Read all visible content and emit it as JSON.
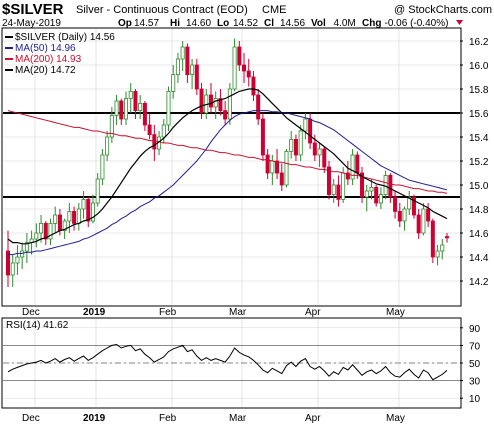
{
  "header": {
    "symbol": "$SILVER",
    "description": "Silver - Continuous Contract (EOD)",
    "exchange": "CME",
    "brand": "@ StockCharts.com",
    "date": "24-May-2019",
    "quote": [
      {
        "label": "Op",
        "value": "14.57"
      },
      {
        "label": "Hi",
        "value": "14.60"
      },
      {
        "label": "Lo",
        "value": "14.52"
      },
      {
        "label": "Cl",
        "value": "14.56"
      },
      {
        "label": "Vol",
        "value": "4.0M"
      },
      {
        "label": "Chg",
        "value": "-0.06 (-0.40%)"
      }
    ],
    "chg_icon": "down-triangle-icon"
  },
  "legend": [
    {
      "text": "$SILVER (Daily) 14.56",
      "color": "#000000"
    },
    {
      "text": "MA(50) 14.96",
      "color": "#1f1f8f"
    },
    {
      "text": "MA(200) 14.93",
      "color": "#c8102e"
    },
    {
      "text": "MA(20) 14.72",
      "color": "#000000"
    }
  ],
  "colors": {
    "up": "#2e8b2e",
    "down": "#cc0033",
    "ma50": "#1f1f8f",
    "ma200": "#c8102e",
    "ma20": "#000000",
    "grid": "#d6d6d6",
    "rsi": "#000000",
    "rsi_fill": "#e3c2e3"
  },
  "chart_data": [
    {
      "type": "candlestick",
      "series_name": "$SILVER (Daily)",
      "ylim": [
        14.0,
        16.3
      ],
      "y_ticks": [
        "16.2",
        "16.0",
        "15.8",
        "15.6",
        "15.4",
        "15.2",
        "15.0",
        "14.8",
        "14.6",
        "14.4",
        "14.2"
      ],
      "x_ticks": [
        "Dec",
        "2019",
        "Feb",
        "Mar",
        "Apr",
        "May"
      ],
      "grid": true,
      "horizontal_lines": [
        15.6,
        14.9
      ],
      "candles": [
        [
          14.45,
          14.62,
          14.15,
          14.25
        ],
        [
          14.25,
          14.42,
          14.15,
          14.35
        ],
        [
          14.35,
          14.5,
          14.25,
          14.4
        ],
        [
          14.4,
          14.52,
          14.3,
          14.45
        ],
        [
          14.45,
          14.6,
          14.35,
          14.52
        ],
        [
          14.52,
          14.62,
          14.42,
          14.55
        ],
        [
          14.55,
          14.68,
          14.48,
          14.6
        ],
        [
          14.6,
          14.75,
          14.52,
          14.68
        ],
        [
          14.68,
          14.7,
          14.5,
          14.55
        ],
        [
          14.55,
          14.72,
          14.5,
          14.68
        ],
        [
          14.68,
          14.82,
          14.6,
          14.75
        ],
        [
          14.75,
          14.8,
          14.58,
          14.62
        ],
        [
          14.62,
          14.72,
          14.55,
          14.7
        ],
        [
          14.7,
          14.85,
          14.6,
          14.78
        ],
        [
          14.78,
          14.82,
          14.62,
          14.68
        ],
        [
          14.68,
          14.85,
          14.62,
          14.8
        ],
        [
          14.8,
          14.95,
          14.72,
          14.88
        ],
        [
          14.88,
          14.9,
          14.65,
          14.7
        ],
        [
          14.7,
          14.92,
          14.68,
          14.85
        ],
        [
          14.85,
          15.1,
          14.82,
          15.05
        ],
        [
          15.05,
          15.3,
          15.0,
          15.25
        ],
        [
          15.25,
          15.45,
          15.2,
          15.4
        ],
        [
          15.4,
          15.65,
          15.35,
          15.58
        ],
        [
          15.58,
          15.75,
          15.5,
          15.7
        ],
        [
          15.7,
          15.72,
          15.5,
          15.55
        ],
        [
          15.55,
          15.78,
          15.5,
          15.72
        ],
        [
          15.72,
          15.85,
          15.6,
          15.78
        ],
        [
          15.78,
          15.8,
          15.55,
          15.62
        ],
        [
          15.62,
          15.75,
          15.55,
          15.68
        ],
        [
          15.68,
          15.7,
          15.45,
          15.5
        ],
        [
          15.5,
          15.6,
          15.38,
          15.42
        ],
        [
          15.42,
          15.5,
          15.2,
          15.3
        ],
        [
          15.3,
          15.45,
          15.25,
          15.4
        ],
        [
          15.4,
          15.55,
          15.35,
          15.5
        ],
        [
          15.5,
          15.82,
          15.45,
          15.78
        ],
        [
          15.78,
          16.0,
          15.72,
          15.92
        ],
        [
          15.92,
          16.1,
          15.85,
          16.05
        ],
        [
          16.05,
          16.2,
          15.95,
          16.15
        ],
        [
          16.15,
          16.18,
          15.85,
          15.92
        ],
        [
          15.92,
          16.05,
          15.8,
          16.0
        ],
        [
          16.0,
          16.05,
          15.75,
          15.8
        ],
        [
          15.8,
          15.85,
          15.55,
          15.6
        ],
        [
          15.6,
          15.8,
          15.55,
          15.75
        ],
        [
          15.75,
          15.85,
          15.6,
          15.65
        ],
        [
          15.65,
          15.78,
          15.55,
          15.72
        ],
        [
          15.72,
          15.8,
          15.58,
          15.62
        ],
        [
          15.62,
          15.7,
          15.5,
          15.55
        ],
        [
          15.55,
          15.85,
          15.5,
          15.8
        ],
        [
          15.8,
          16.22,
          15.78,
          16.15
        ],
        [
          16.15,
          16.2,
          15.95,
          16.0
        ],
        [
          16.0,
          16.1,
          15.85,
          15.95
        ],
        [
          15.95,
          16.05,
          15.82,
          15.9
        ],
        [
          15.9,
          15.95,
          15.7,
          15.75
        ],
        [
          15.75,
          15.8,
          15.5,
          15.55
        ],
        [
          15.55,
          15.6,
          15.2,
          15.25
        ],
        [
          15.25,
          15.3,
          15.05,
          15.1
        ],
        [
          15.1,
          15.25,
          15.0,
          15.2
        ],
        [
          15.2,
          15.3,
          15.05,
          15.1
        ],
        [
          15.1,
          15.18,
          14.95,
          15.0
        ],
        [
          15.0,
          15.3,
          14.98,
          15.28
        ],
        [
          15.28,
          15.45,
          15.22,
          15.38
        ],
        [
          15.38,
          15.42,
          15.2,
          15.25
        ],
        [
          15.25,
          15.5,
          15.2,
          15.45
        ],
        [
          15.45,
          15.6,
          15.38,
          15.55
        ],
        [
          15.55,
          15.6,
          15.3,
          15.35
        ],
        [
          15.35,
          15.42,
          15.2,
          15.25
        ],
        [
          15.25,
          15.35,
          15.15,
          15.3
        ],
        [
          15.3,
          15.32,
          15.1,
          15.15
        ],
        [
          15.15,
          15.2,
          14.88,
          14.92
        ],
        [
          14.92,
          15.05,
          14.85,
          15.0
        ],
        [
          15.0,
          15.08,
          14.82,
          14.88
        ],
        [
          14.88,
          15.15,
          14.85,
          15.1
        ],
        [
          15.1,
          15.2,
          15.0,
          15.05
        ],
        [
          15.05,
          15.3,
          15.0,
          15.25
        ],
        [
          15.25,
          15.28,
          15.05,
          15.1
        ],
        [
          15.1,
          15.15,
          14.85,
          14.9
        ],
        [
          14.9,
          15.0,
          14.78,
          14.95
        ],
        [
          14.95,
          15.05,
          14.88,
          14.98
        ],
        [
          14.98,
          15.0,
          14.82,
          14.85
        ],
        [
          14.85,
          14.98,
          14.8,
          14.92
        ],
        [
          14.92,
          15.12,
          14.88,
          15.08
        ],
        [
          15.08,
          15.1,
          14.85,
          14.9
        ],
        [
          14.9,
          14.95,
          14.72,
          14.78
        ],
        [
          14.78,
          14.85,
          14.65,
          14.7
        ],
        [
          14.7,
          14.82,
          14.62,
          14.8
        ],
        [
          14.8,
          14.95,
          14.75,
          14.9
        ],
        [
          14.9,
          14.92,
          14.72,
          14.75
        ],
        [
          14.75,
          14.8,
          14.55,
          14.6
        ],
        [
          14.6,
          14.85,
          14.58,
          14.8
        ],
        [
          14.8,
          14.85,
          14.65,
          14.7
        ],
        [
          14.7,
          14.72,
          14.35,
          14.4
        ],
        [
          14.4,
          14.5,
          14.33,
          14.45
        ],
        [
          14.45,
          14.55,
          14.38,
          14.5
        ],
        [
          14.57,
          14.6,
          14.52,
          14.56
        ]
      ],
      "ma20": [
        14.55,
        14.52,
        14.52,
        14.51,
        14.51,
        14.52,
        14.53,
        14.55,
        14.56,
        14.58,
        14.6,
        14.62,
        14.63,
        14.65,
        14.67,
        14.68,
        14.7,
        14.71,
        14.73,
        14.76,
        14.8,
        14.85,
        14.9,
        14.96,
        15.02,
        15.08,
        15.14,
        15.19,
        15.24,
        15.28,
        15.31,
        15.33,
        15.36,
        15.39,
        15.43,
        15.48,
        15.52,
        15.56,
        15.59,
        15.62,
        15.64,
        15.66,
        15.67,
        15.68,
        15.7,
        15.71,
        15.72,
        15.74,
        15.76,
        15.78,
        15.79,
        15.8,
        15.8,
        15.79,
        15.76,
        15.72,
        15.68,
        15.64,
        15.6,
        15.56,
        15.53,
        15.5,
        15.47,
        15.44,
        15.41,
        15.38,
        15.35,
        15.32,
        15.29,
        15.26,
        15.22,
        15.18,
        15.14,
        15.12,
        15.1,
        15.07,
        15.05,
        15.03,
        15.01,
        15.0,
        14.99,
        14.97,
        14.95,
        14.93,
        14.91,
        14.89,
        14.87,
        14.85,
        14.83,
        14.81,
        14.78,
        14.76,
        14.74,
        14.72
      ],
      "ma50": [
        14.42,
        14.42,
        14.43,
        14.43,
        14.44,
        14.44,
        14.45,
        14.45,
        14.46,
        14.47,
        14.48,
        14.49,
        14.5,
        14.51,
        14.52,
        14.53,
        14.55,
        14.56,
        14.58,
        14.6,
        14.62,
        14.64,
        14.67,
        14.69,
        14.72,
        14.74,
        14.77,
        14.79,
        14.82,
        14.84,
        14.86,
        14.89,
        14.91,
        14.94,
        14.97,
        15.0,
        15.04,
        15.08,
        15.12,
        15.16,
        15.2,
        15.25,
        15.3,
        15.36,
        15.41,
        15.46,
        15.5,
        15.54,
        15.57,
        15.59,
        15.6,
        15.61,
        15.62,
        15.62,
        15.62,
        15.62,
        15.61,
        15.61,
        15.6,
        15.6,
        15.59,
        15.58,
        15.57,
        15.56,
        15.55,
        15.53,
        15.52,
        15.5,
        15.48,
        15.46,
        15.43,
        15.4,
        15.37,
        15.34,
        15.31,
        15.28,
        15.25,
        15.22,
        15.19,
        15.16,
        15.14,
        15.12,
        15.1,
        15.08,
        15.06,
        15.04,
        15.03,
        15.02,
        15.01,
        15.0,
        14.99,
        14.98,
        14.97,
        14.96
      ],
      "ma200": [
        15.62,
        15.61,
        15.6,
        15.59,
        15.58,
        15.57,
        15.56,
        15.55,
        15.54,
        15.53,
        15.52,
        15.51,
        15.5,
        15.49,
        15.48,
        15.48,
        15.47,
        15.46,
        15.45,
        15.45,
        15.44,
        15.43,
        15.43,
        15.42,
        15.41,
        15.41,
        15.4,
        15.39,
        15.39,
        15.38,
        15.37,
        15.37,
        15.36,
        15.35,
        15.35,
        15.34,
        15.33,
        15.33,
        15.32,
        15.31,
        15.31,
        15.3,
        15.29,
        15.29,
        15.28,
        15.27,
        15.27,
        15.26,
        15.25,
        15.25,
        15.24,
        15.23,
        15.23,
        15.22,
        15.21,
        15.21,
        15.2,
        15.19,
        15.19,
        15.18,
        15.17,
        15.17,
        15.16,
        15.15,
        15.15,
        15.14,
        15.13,
        15.13,
        15.12,
        15.11,
        15.11,
        15.1,
        15.09,
        15.08,
        15.08,
        15.07,
        15.06,
        15.05,
        15.04,
        15.03,
        15.02,
        15.01,
        15.0,
        15.0,
        14.99,
        14.98,
        14.97,
        14.97,
        14.96,
        14.95,
        14.95,
        14.94,
        14.94,
        14.93
      ]
    },
    {
      "type": "line",
      "series_name": "RSI(14)",
      "legend_text": "RSI(14) 41.62",
      "ylim": [
        0,
        100
      ],
      "y_ticks": [
        "90",
        "70",
        "50",
        "30",
        "10"
      ],
      "x_ticks": [
        "Dec",
        "2019",
        "Feb",
        "Mar",
        "Apr",
        "May"
      ],
      "reference_lines": [
        70,
        50,
        30
      ],
      "values": [
        40,
        43,
        45,
        47,
        49,
        50,
        51,
        53,
        50,
        52,
        55,
        51,
        54,
        56,
        52,
        55,
        58,
        53,
        56,
        60,
        64,
        67,
        70,
        71,
        67,
        69,
        70,
        64,
        66,
        60,
        56,
        51,
        54,
        57,
        63,
        66,
        68,
        70,
        63,
        65,
        58,
        53,
        56,
        53,
        55,
        53,
        51,
        58,
        67,
        62,
        59,
        57,
        53,
        48,
        42,
        39,
        44,
        41,
        38,
        47,
        51,
        46,
        52,
        55,
        46,
        43,
        46,
        41,
        35,
        40,
        37,
        45,
        42,
        48,
        42,
        36,
        40,
        42,
        38,
        41,
        46,
        39,
        35,
        34,
        39,
        43,
        37,
        33,
        42,
        39,
        31,
        34,
        37,
        41.62
      ],
      "fill_above": 70
    }
  ]
}
